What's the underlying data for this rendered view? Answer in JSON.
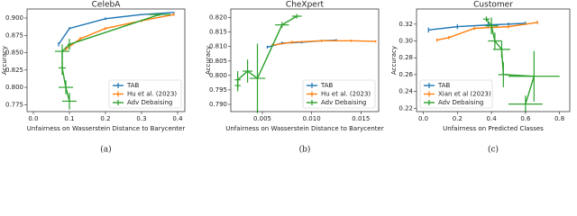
{
  "chart_data": [
    {
      "type": "line",
      "title": "CelebA",
      "xlabel": "Unfairness on Wasserstein Distance to Barycenter",
      "ylabel": "Accuracy",
      "caption": "(a)",
      "xlim": [
        -0.0175,
        0.42
      ],
      "ylim": [
        0.765,
        0.913
      ],
      "xticks": [
        {
          "value": 0,
          "label": "0.0"
        },
        0.1,
        0.2,
        0.3,
        0.4
      ],
      "yticks": [
        0.775,
        {
          "value": 0.8,
          "label": "0.800"
        },
        0.825,
        {
          "value": 0.85,
          "label": "0.850"
        },
        0.875,
        {
          "value": 0.9,
          "label": "0.900"
        }
      ],
      "legend": "lower right",
      "series": [
        {
          "name": "TAB",
          "color": "#1f77b4",
          "x": [
            0.07,
            0.1,
            0.2,
            0.3,
            0.39
          ],
          "values": [
            0.862,
            0.885,
            0.899,
            0.905,
            0.908
          ],
          "yerr": [
            0.003,
            0.002,
            0.002,
            0.001,
            0.001
          ]
        },
        {
          "name": "Hu et al. (2023)",
          "color": "#ff7f0e",
          "x": [
            0.09,
            0.13,
            0.2,
            0.3,
            0.39
          ],
          "values": [
            0.855,
            0.87,
            0.885,
            0.896,
            0.905
          ],
          "yerr": [
            0.003,
            0.003,
            0.002,
            0.002,
            0.002
          ]
        },
        {
          "name": "Adv Debaising",
          "color": "#2ca02c",
          "x": [
            0.35,
            0.1,
            0.08,
            0.08,
            0.09,
            0.1
          ],
          "values": [
            0.905,
            0.862,
            0.852,
            0.828,
            0.8,
            0.78
          ],
          "xerr": [
            0.03,
            0.005,
            0.02,
            0.01,
            0.02,
            0.02
          ],
          "yerr": [
            0.002,
            0.008,
            0.01,
            0.01,
            0.01,
            0.012
          ]
        }
      ]
    },
    {
      "type": "line",
      "title": "CheXpert",
      "xlabel": "Unfairness on Wasserstein Distance to Barycenter",
      "ylabel": "Accuracy",
      "caption": "(b)",
      "xlim": [
        0.0018,
        0.0168
      ],
      "ylim": [
        0.7875,
        0.823
      ],
      "xticks": [
        0.005,
        {
          "value": 0.01,
          "label": "0.010"
        },
        0.015
      ],
      "yticks": [
        {
          "value": 0.79,
          "label": "0.790"
        },
        0.795,
        {
          "value": 0.8,
          "label": "0.800"
        },
        0.805,
        {
          "value": 0.81,
          "label": "0.810"
        },
        0.815,
        {
          "value": 0.82,
          "label": "0.820"
        }
      ],
      "legend": "lower right",
      "series": [
        {
          "name": "TAB",
          "color": "#1f77b4",
          "x": [
            0.0055,
            0.007,
            0.009,
            0.011,
            0.0125
          ],
          "values": [
            0.8098,
            0.8112,
            0.8115,
            0.812,
            0.8122
          ],
          "yerr": [
            0.0005,
            0.0005,
            0.0004,
            0.0004,
            0.0004
          ]
        },
        {
          "name": "Hu et al. (2023)",
          "color": "#ff7f0e",
          "x": [
            0.006,
            0.008,
            0.011,
            0.014,
            0.0165
          ],
          "values": [
            0.8105,
            0.8115,
            0.812,
            0.812,
            0.8118
          ],
          "yerr": [
            0.0005,
            0.0005,
            0.0004,
            0.0004,
            0.0004
          ]
        },
        {
          "name": "Adv Debaising",
          "color": "#2ca02c",
          "x": [
            0.0085,
            0.007,
            0.0045,
            0.0035,
            0.0025,
            0.0025
          ],
          "values": [
            0.8205,
            0.8175,
            0.799,
            0.8015,
            0.7985,
            0.7965
          ],
          "xerr": [
            0.0005,
            0.0007,
            0.0008,
            0.0005,
            0.0003,
            0.0003
          ],
          "yerr": [
            0.0008,
            0.001,
            0.012,
            0.004,
            0.003,
            0.002
          ]
        }
      ]
    },
    {
      "type": "line",
      "title": "Customer",
      "xlabel": "Unfairness on Predicted Classes",
      "ylabel": "Accuracy",
      "caption": "(c)",
      "xlim": [
        -0.04,
        0.86
      ],
      "ylim": [
        0.216,
        0.338
      ],
      "xticks": [
        {
          "value": 0,
          "label": "0.0"
        },
        0.2,
        0.4,
        0.6,
        0.8
      ],
      "yticks": [
        0.22,
        0.24,
        0.26,
        0.28,
        {
          "value": 0.3,
          "label": "0.30"
        },
        0.32
      ],
      "legend": "lower left",
      "series": [
        {
          "name": "TAB",
          "color": "#1f77b4",
          "x": [
            0.03,
            0.2,
            0.38,
            0.5,
            0.6
          ],
          "values": [
            0.313,
            0.317,
            0.319,
            0.32,
            0.321
          ],
          "yerr": [
            0.003,
            0.003,
            0.003,
            0.002,
            0.002
          ]
        },
        {
          "name": "Xian et al (2023)",
          "color": "#ff7f0e",
          "x": [
            0.08,
            0.15,
            0.3,
            0.5,
            0.67
          ],
          "values": [
            0.301,
            0.304,
            0.315,
            0.317,
            0.322
          ],
          "yerr": [
            0.002,
            0.002,
            0.002,
            0.002,
            0.002
          ]
        },
        {
          "name": "Adv Debaising",
          "color": "#2ca02c",
          "x": [
            0.37,
            0.4,
            0.42,
            0.46,
            0.47,
            0.65,
            0.6
          ],
          "values": [
            0.326,
            0.318,
            0.3,
            0.29,
            0.26,
            0.258,
            0.225
          ],
          "xerr": [
            0.02,
            0.04,
            0.04,
            0.05,
            0.03,
            0.15,
            0.1
          ],
          "yerr": [
            0.003,
            0.01,
            0.01,
            0.01,
            0.015,
            0.03,
            0.01
          ]
        }
      ]
    }
  ]
}
